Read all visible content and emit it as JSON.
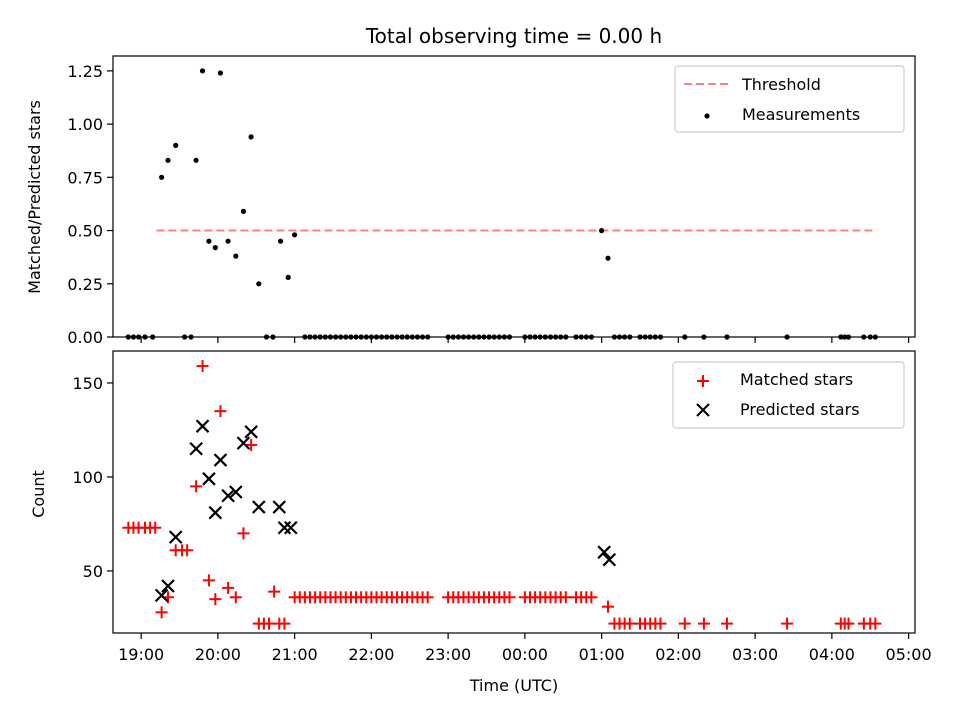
{
  "chart_data": [
    {
      "type": "scatter",
      "title": "Total observing time = 0.00 h",
      "xlabel": "",
      "ylabel": "Matched/Predicted stars",
      "ylim": [
        0,
        1.32
      ],
      "xlim": [
        "18:38",
        "05:05"
      ],
      "y_ticks": [
        "0.00",
        "0.25",
        "0.50",
        "0.75",
        "1.00",
        "1.25"
      ],
      "legend_position": "top-right",
      "threshold": {
        "name": "Threshold",
        "value": 0.5,
        "x_start": "19:12",
        "x_end": "04:33",
        "color": "#ff8080",
        "style": "dashed"
      },
      "series": [
        {
          "name": "Measurements",
          "color": "#000000",
          "marker": "dot",
          "points": [
            [
              "18:50",
              0
            ],
            [
              "18:54",
              0
            ],
            [
              "18:58",
              0
            ],
            [
              "19:03",
              0
            ],
            [
              "19:09",
              0
            ],
            [
              "19:16",
              0.75
            ],
            [
              "19:21",
              0.83
            ],
            [
              "19:27",
              0.9
            ],
            [
              "19:34",
              0
            ],
            [
              "19:39",
              0
            ],
            [
              "19:43",
              0.83
            ],
            [
              "19:48",
              1.25
            ],
            [
              "19:53",
              0.45
            ],
            [
              "19:58",
              0.42
            ],
            [
              "20:02",
              1.24
            ],
            [
              "20:08",
              0.45
            ],
            [
              "20:14",
              0.38
            ],
            [
              "20:20",
              0.59
            ],
            [
              "20:26",
              0.94
            ],
            [
              "20:32",
              0.25
            ],
            [
              "20:38",
              0
            ],
            [
              "20:43",
              0
            ],
            [
              "20:49",
              0.45
            ],
            [
              "20:55",
              0.28
            ],
            [
              "21:00",
              0.48
            ],
            [
              "21:08",
              0
            ],
            [
              "21:12",
              0
            ],
            [
              "21:16",
              0
            ],
            [
              "21:20",
              0
            ],
            [
              "21:24",
              0
            ],
            [
              "21:28",
              0
            ],
            [
              "21:32",
              0
            ],
            [
              "21:36",
              0
            ],
            [
              "21:40",
              0
            ],
            [
              "21:44",
              0
            ],
            [
              "21:48",
              0
            ],
            [
              "21:52",
              0
            ],
            [
              "21:56",
              0
            ],
            [
              "22:00",
              0
            ],
            [
              "22:04",
              0
            ],
            [
              "22:08",
              0
            ],
            [
              "22:12",
              0
            ],
            [
              "22:16",
              0
            ],
            [
              "22:20",
              0
            ],
            [
              "22:24",
              0
            ],
            [
              "22:28",
              0
            ],
            [
              "22:32",
              0
            ],
            [
              "22:36",
              0
            ],
            [
              "22:40",
              0
            ],
            [
              "22:44",
              0
            ],
            [
              "23:00",
              0
            ],
            [
              "23:04",
              0
            ],
            [
              "23:08",
              0
            ],
            [
              "23:12",
              0
            ],
            [
              "23:16",
              0
            ],
            [
              "23:20",
              0
            ],
            [
              "23:24",
              0
            ],
            [
              "23:28",
              0
            ],
            [
              "23:32",
              0
            ],
            [
              "23:36",
              0
            ],
            [
              "23:40",
              0
            ],
            [
              "23:44",
              0
            ],
            [
              "23:48",
              0
            ],
            [
              "24:00",
              0
            ],
            [
              "24:04",
              0
            ],
            [
              "24:08",
              0
            ],
            [
              "24:12",
              0
            ],
            [
              "24:16",
              0
            ],
            [
              "24:20",
              0
            ],
            [
              "24:24",
              0
            ],
            [
              "24:28",
              0
            ],
            [
              "24:32",
              0
            ],
            [
              "24:40",
              0
            ],
            [
              "24:44",
              0
            ],
            [
              "24:48",
              0
            ],
            [
              "24:52",
              0
            ],
            [
              "25:00",
              0.5
            ],
            [
              "25:05",
              0.37
            ],
            [
              "25:10",
              0
            ],
            [
              "25:14",
              0
            ],
            [
              "25:18",
              0
            ],
            [
              "25:22",
              0
            ],
            [
              "25:30",
              0
            ],
            [
              "25:34",
              0
            ],
            [
              "25:38",
              0
            ],
            [
              "25:42",
              0
            ],
            [
              "25:46",
              0
            ],
            [
              "26:05",
              0
            ],
            [
              "26:20",
              0
            ],
            [
              "26:38",
              0
            ],
            [
              "27:25",
              0
            ],
            [
              "28:07",
              0
            ],
            [
              "28:10",
              0
            ],
            [
              "28:13",
              0
            ],
            [
              "28:25",
              0
            ],
            [
              "28:30",
              0
            ],
            [
              "28:34",
              0
            ]
          ]
        }
      ]
    },
    {
      "type": "scatter",
      "title": "",
      "xlabel": "Time (UTC)",
      "ylabel": "Count",
      "ylim": [
        17,
        167
      ],
      "xlim": [
        "18:38",
        "05:05"
      ],
      "y_ticks": [
        "50",
        "100",
        "150"
      ],
      "x_ticks": [
        "19:00",
        "20:00",
        "21:00",
        "22:00",
        "23:00",
        "00:00",
        "01:00",
        "02:00",
        "03:00",
        "04:00",
        "05:00"
      ],
      "legend_position": "top-right",
      "series": [
        {
          "name": "Matched stars",
          "color": "#ff0000",
          "marker": "plus",
          "points": [
            [
              "18:50",
              73
            ],
            [
              "18:54",
              73
            ],
            [
              "18:58",
              73
            ],
            [
              "19:03",
              73
            ],
            [
              "19:07",
              73
            ],
            [
              "19:11",
              73
            ],
            [
              "19:16",
              28
            ],
            [
              "19:21",
              36
            ],
            [
              "19:27",
              61
            ],
            [
              "19:32",
              61
            ],
            [
              "19:36",
              61
            ],
            [
              "19:43",
              95
            ],
            [
              "19:48",
              159
            ],
            [
              "19:53",
              45
            ],
            [
              "19:58",
              35
            ],
            [
              "20:02",
              135
            ],
            [
              "20:08",
              41
            ],
            [
              "20:14",
              36
            ],
            [
              "20:20",
              70
            ],
            [
              "20:26",
              117
            ],
            [
              "20:32",
              22
            ],
            [
              "20:36",
              22
            ],
            [
              "20:40",
              22
            ],
            [
              "20:44",
              39
            ],
            [
              "20:48",
              22
            ],
            [
              "20:52",
              22
            ],
            [
              "21:00",
              36
            ],
            [
              "21:04",
              36
            ],
            [
              "21:08",
              36
            ],
            [
              "21:12",
              36
            ],
            [
              "21:16",
              36
            ],
            [
              "21:20",
              36
            ],
            [
              "21:24",
              36
            ],
            [
              "21:28",
              36
            ],
            [
              "21:32",
              36
            ],
            [
              "21:36",
              36
            ],
            [
              "21:40",
              36
            ],
            [
              "21:44",
              36
            ],
            [
              "21:48",
              36
            ],
            [
              "21:52",
              36
            ],
            [
              "21:56",
              36
            ],
            [
              "22:00",
              36
            ],
            [
              "22:04",
              36
            ],
            [
              "22:08",
              36
            ],
            [
              "22:12",
              36
            ],
            [
              "22:16",
              36
            ],
            [
              "22:20",
              36
            ],
            [
              "22:24",
              36
            ],
            [
              "22:28",
              36
            ],
            [
              "22:32",
              36
            ],
            [
              "22:36",
              36
            ],
            [
              "22:40",
              36
            ],
            [
              "22:44",
              36
            ],
            [
              "23:00",
              36
            ],
            [
              "23:04",
              36
            ],
            [
              "23:08",
              36
            ],
            [
              "23:12",
              36
            ],
            [
              "23:16",
              36
            ],
            [
              "23:20",
              36
            ],
            [
              "23:24",
              36
            ],
            [
              "23:28",
              36
            ],
            [
              "23:32",
              36
            ],
            [
              "23:36",
              36
            ],
            [
              "23:40",
              36
            ],
            [
              "23:44",
              36
            ],
            [
              "23:48",
              36
            ],
            [
              "24:00",
              36
            ],
            [
              "24:04",
              36
            ],
            [
              "24:08",
              36
            ],
            [
              "24:12",
              36
            ],
            [
              "24:16",
              36
            ],
            [
              "24:20",
              36
            ],
            [
              "24:24",
              36
            ],
            [
              "24:28",
              36
            ],
            [
              "24:32",
              36
            ],
            [
              "24:40",
              36
            ],
            [
              "24:44",
              36
            ],
            [
              "24:48",
              36
            ],
            [
              "24:52",
              36
            ],
            [
              "25:05",
              31
            ],
            [
              "25:10",
              22
            ],
            [
              "25:14",
              22
            ],
            [
              "25:18",
              22
            ],
            [
              "25:22",
              22
            ],
            [
              "25:30",
              22
            ],
            [
              "25:34",
              22
            ],
            [
              "25:38",
              22
            ],
            [
              "25:42",
              22
            ],
            [
              "25:46",
              22
            ],
            [
              "26:05",
              22
            ],
            [
              "26:20",
              22
            ],
            [
              "26:38",
              22
            ],
            [
              "27:25",
              22
            ],
            [
              "28:07",
              22
            ],
            [
              "28:10",
              22
            ],
            [
              "28:13",
              22
            ],
            [
              "28:25",
              22
            ],
            [
              "28:30",
              22
            ],
            [
              "28:34",
              22
            ]
          ]
        },
        {
          "name": "Predicted stars",
          "color": "#000000",
          "marker": "x",
          "points": [
            [
              "19:16",
              37
            ],
            [
              "19:21",
              42
            ],
            [
              "19:27",
              68
            ],
            [
              "19:43",
              115
            ],
            [
              "19:48",
              127
            ],
            [
              "19:53",
              99
            ],
            [
              "19:58",
              81
            ],
            [
              "20:02",
              109
            ],
            [
              "20:08",
              90
            ],
            [
              "20:14",
              92
            ],
            [
              "20:20",
              118
            ],
            [
              "20:26",
              124
            ],
            [
              "20:32",
              84
            ],
            [
              "20:48",
              84
            ],
            [
              "20:52",
              73
            ],
            [
              "20:57",
              73
            ],
            [
              "25:02",
              60
            ],
            [
              "25:06",
              56
            ]
          ]
        }
      ]
    }
  ]
}
